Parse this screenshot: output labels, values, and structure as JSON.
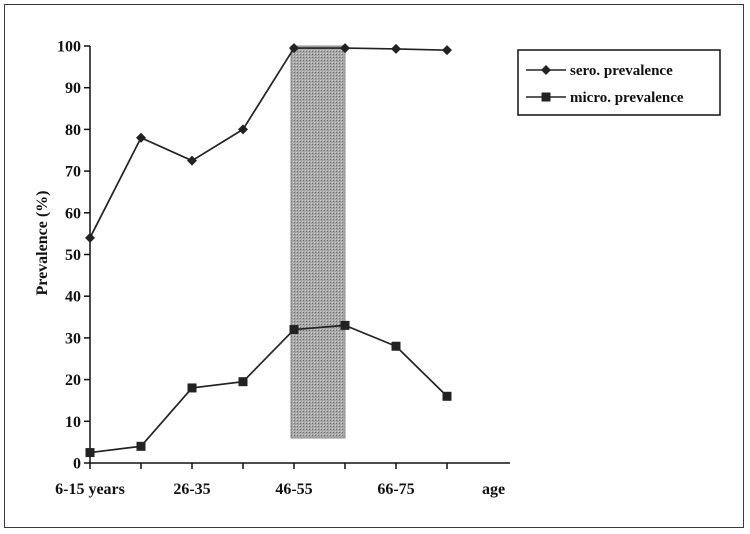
{
  "chart_data": {
    "type": "line",
    "x_positions": [
      0,
      1,
      2,
      3,
      4,
      5,
      6,
      7
    ],
    "x_tick_labels": [
      {
        "pos": 0,
        "label": "6-15 years"
      },
      {
        "pos": 2,
        "label": "26-35"
      },
      {
        "pos": 4,
        "label": "46-55"
      },
      {
        "pos": 6,
        "label": "66-75"
      }
    ],
    "xlabel": "age",
    "ylabel": "Prevalence (%)",
    "ylim": [
      0,
      100
    ],
    "y_ticks": [
      0,
      10,
      20,
      30,
      40,
      50,
      60,
      70,
      80,
      90,
      100
    ],
    "grid": false,
    "legend_position": "top-right",
    "series": [
      {
        "name": "sero. prevalence",
        "marker": "diamond",
        "color": "#222222",
        "values": [
          54,
          78,
          72.5,
          80,
          99.5,
          99.5,
          99.3,
          99
        ]
      },
      {
        "name": "micro. prevalence",
        "marker": "square",
        "color": "#222222",
        "values": [
          2.5,
          4,
          18,
          19.5,
          32,
          33,
          28,
          16
        ]
      }
    ],
    "shaded_band": {
      "x_start": 4,
      "x_end": 5,
      "y_start": 6,
      "y_end": 100,
      "color": "#9a9a9a"
    }
  }
}
